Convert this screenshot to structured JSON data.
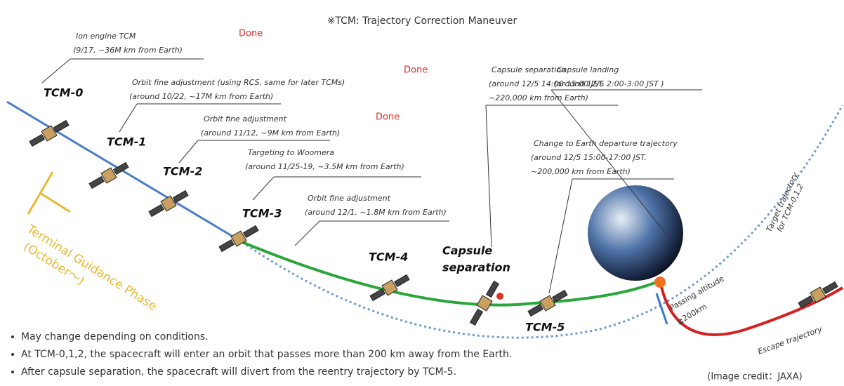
{
  "header": {
    "title": "※TCM: Trajectory Correction Maneuver"
  },
  "maneuvers": [
    "TCM-0",
    "TCM-1",
    "TCM-2",
    "TCM-3",
    "TCM-4",
    "TCM-5"
  ],
  "capsule_label": [
    "Capsule",
    "separation"
  ],
  "done": [
    "Done",
    "Done",
    "Done"
  ],
  "annotations": [
    [
      "Ion engine TCM",
      "(9/17, ~36M km from Earth)"
    ],
    [
      "Orbit fine adjustment (using RCS, same for later TCMs)",
      "(around 10/22, ~17M km from Earth)"
    ],
    [
      "Orbit fine adjustment",
      "(around 11/12, ~9M km from Earth)"
    ],
    [
      "Targeting to Woomera",
      "(around 11/25-19, ~3.5M km from Earth)"
    ],
    [
      "Orbit fine adjustment",
      "(around 12/1. ~1.8M km from Earth)"
    ],
    [
      "Capsule separation",
      "(around 12/5 14:00-15:00 JST.",
      "~220,000 km from Earth)"
    ],
    [
      "Change to Earth departure trajectory",
      "(around 12/5 15:00-17:00 JST.",
      "~200,000 km from Earth)"
    ],
    [
      "Capsule landing",
      "(around 12/6 2:00-3:00 JST )"
    ]
  ],
  "phase_label": [
    "Terminal Guidance Phase",
    "(October～)"
  ],
  "target_label": [
    "Target trajectory",
    "for TCM-0,1,2"
  ],
  "altitude_label": [
    "Passing altitude",
    "≧200km"
  ],
  "escape_label": "Escape trajectory",
  "notes": [
    "May change depending on conditions.",
    "At TCM-0,1,2, the spacecraft will enter an orbit that passes more than 200 km away from the Earth.",
    "After capsule separation, the spacecraft will divert from the reentry trajectory by TCM-5."
  ],
  "credit": "(Image credit：JAXA)"
}
